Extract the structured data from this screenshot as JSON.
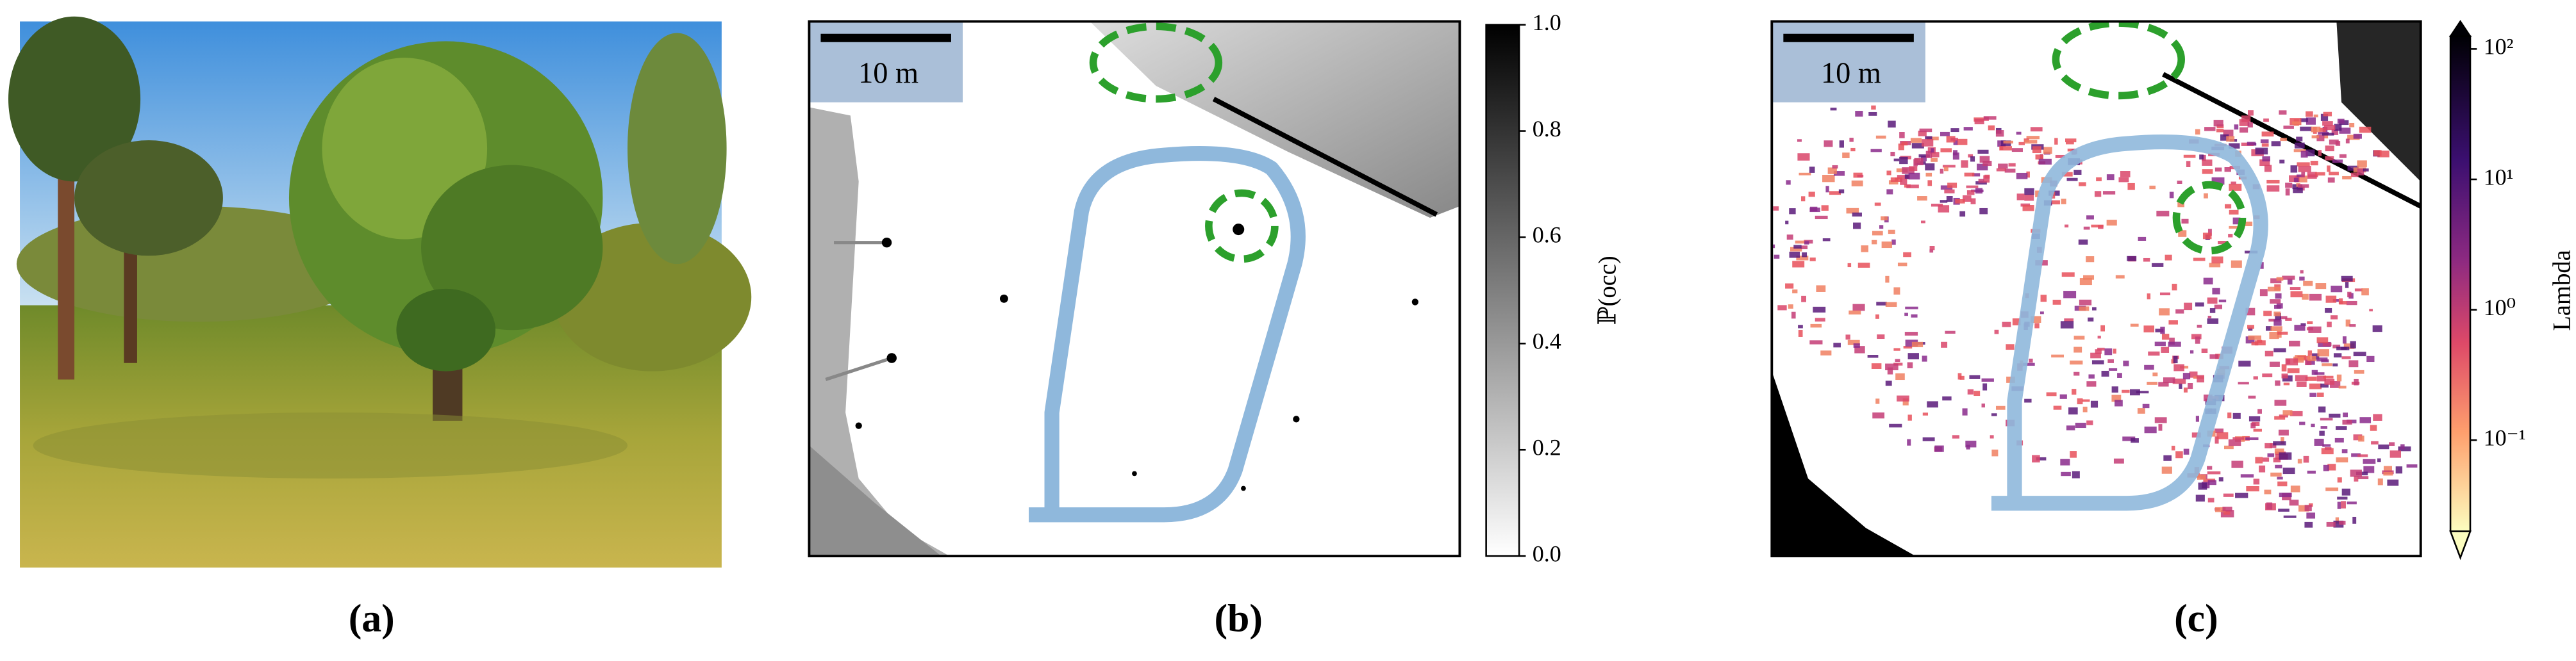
{
  "panels": [
    {
      "label": "(a)"
    },
    {
      "label": "(b)",
      "scale_bar": "10 m",
      "colorbar": {
        "label": "ℙ(occ)",
        "scale": "linear",
        "lim": [
          0,
          1
        ],
        "ticks": [
          {
            "value": 0,
            "label": "0.0"
          },
          0.2,
          0.4,
          0.6,
          0.8,
          {
            "value": 1,
            "label": "1.0"
          }
        ]
      }
    },
    {
      "label": "(c)",
      "scale_bar": "10 m",
      "colorbar": {
        "label": "Lambda",
        "scale": "log",
        "lim": [
          0.02,
          125
        ],
        "ticks": [
          {
            "value": 0.1,
            "label": "10⁻¹"
          },
          {
            "value": 1,
            "label": "10⁰"
          },
          {
            "value": 10,
            "label": "10¹"
          },
          {
            "value": 100,
            "label": "10²"
          }
        ]
      }
    }
  ]
}
